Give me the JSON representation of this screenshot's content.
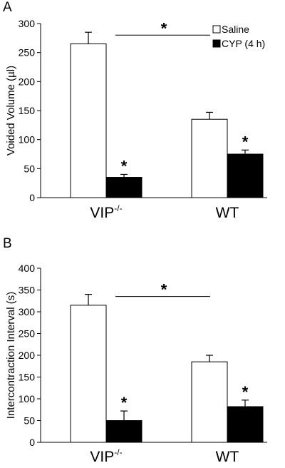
{
  "chart_data": [
    {
      "panel": "A",
      "type": "bar",
      "ylabel": "Voided Volume (µl)",
      "ylim": [
        0,
        300
      ],
      "yticks": [
        0,
        50,
        100,
        150,
        200,
        250,
        300
      ],
      "categories": [
        {
          "base": "VIP",
          "sup": "-/-"
        },
        {
          "base": "WT",
          "sup": ""
        }
      ],
      "series": [
        {
          "name": "Saline",
          "color": "#ffffff",
          "values": [
            265,
            135
          ],
          "errors": [
            20,
            12
          ]
        },
        {
          "name": "CYP (4 h)",
          "color": "#000000",
          "values": [
            35,
            75
          ],
          "errors": [
            5,
            7
          ]
        }
      ],
      "significance": [
        {
          "series": 1,
          "category": 0,
          "mark": "*"
        },
        {
          "series": 1,
          "category": 1,
          "mark": "*"
        }
      ],
      "bracket": {
        "value": 280,
        "mark": "*"
      },
      "legend": "top-right"
    },
    {
      "panel": "B",
      "type": "bar",
      "ylabel": "Intercontraction Interval (s)",
      "ylim": [
        0,
        400
      ],
      "yticks": [
        0,
        50,
        100,
        150,
        200,
        250,
        300,
        350,
        400
      ],
      "categories": [
        {
          "base": "VIP",
          "sup": "-/-"
        },
        {
          "base": "WT",
          "sup": ""
        }
      ],
      "series": [
        {
          "name": "Saline",
          "color": "#ffffff",
          "values": [
            315,
            185
          ],
          "errors": [
            25,
            15
          ]
        },
        {
          "name": "CYP (4 h)",
          "color": "#000000",
          "values": [
            50,
            82
          ],
          "errors": [
            22,
            15
          ]
        }
      ],
      "significance": [
        {
          "series": 1,
          "category": 0,
          "mark": "*"
        },
        {
          "series": 1,
          "category": 1,
          "mark": "*"
        }
      ],
      "bracket": {
        "value": 335,
        "mark": "*"
      },
      "legend": "none"
    }
  ]
}
